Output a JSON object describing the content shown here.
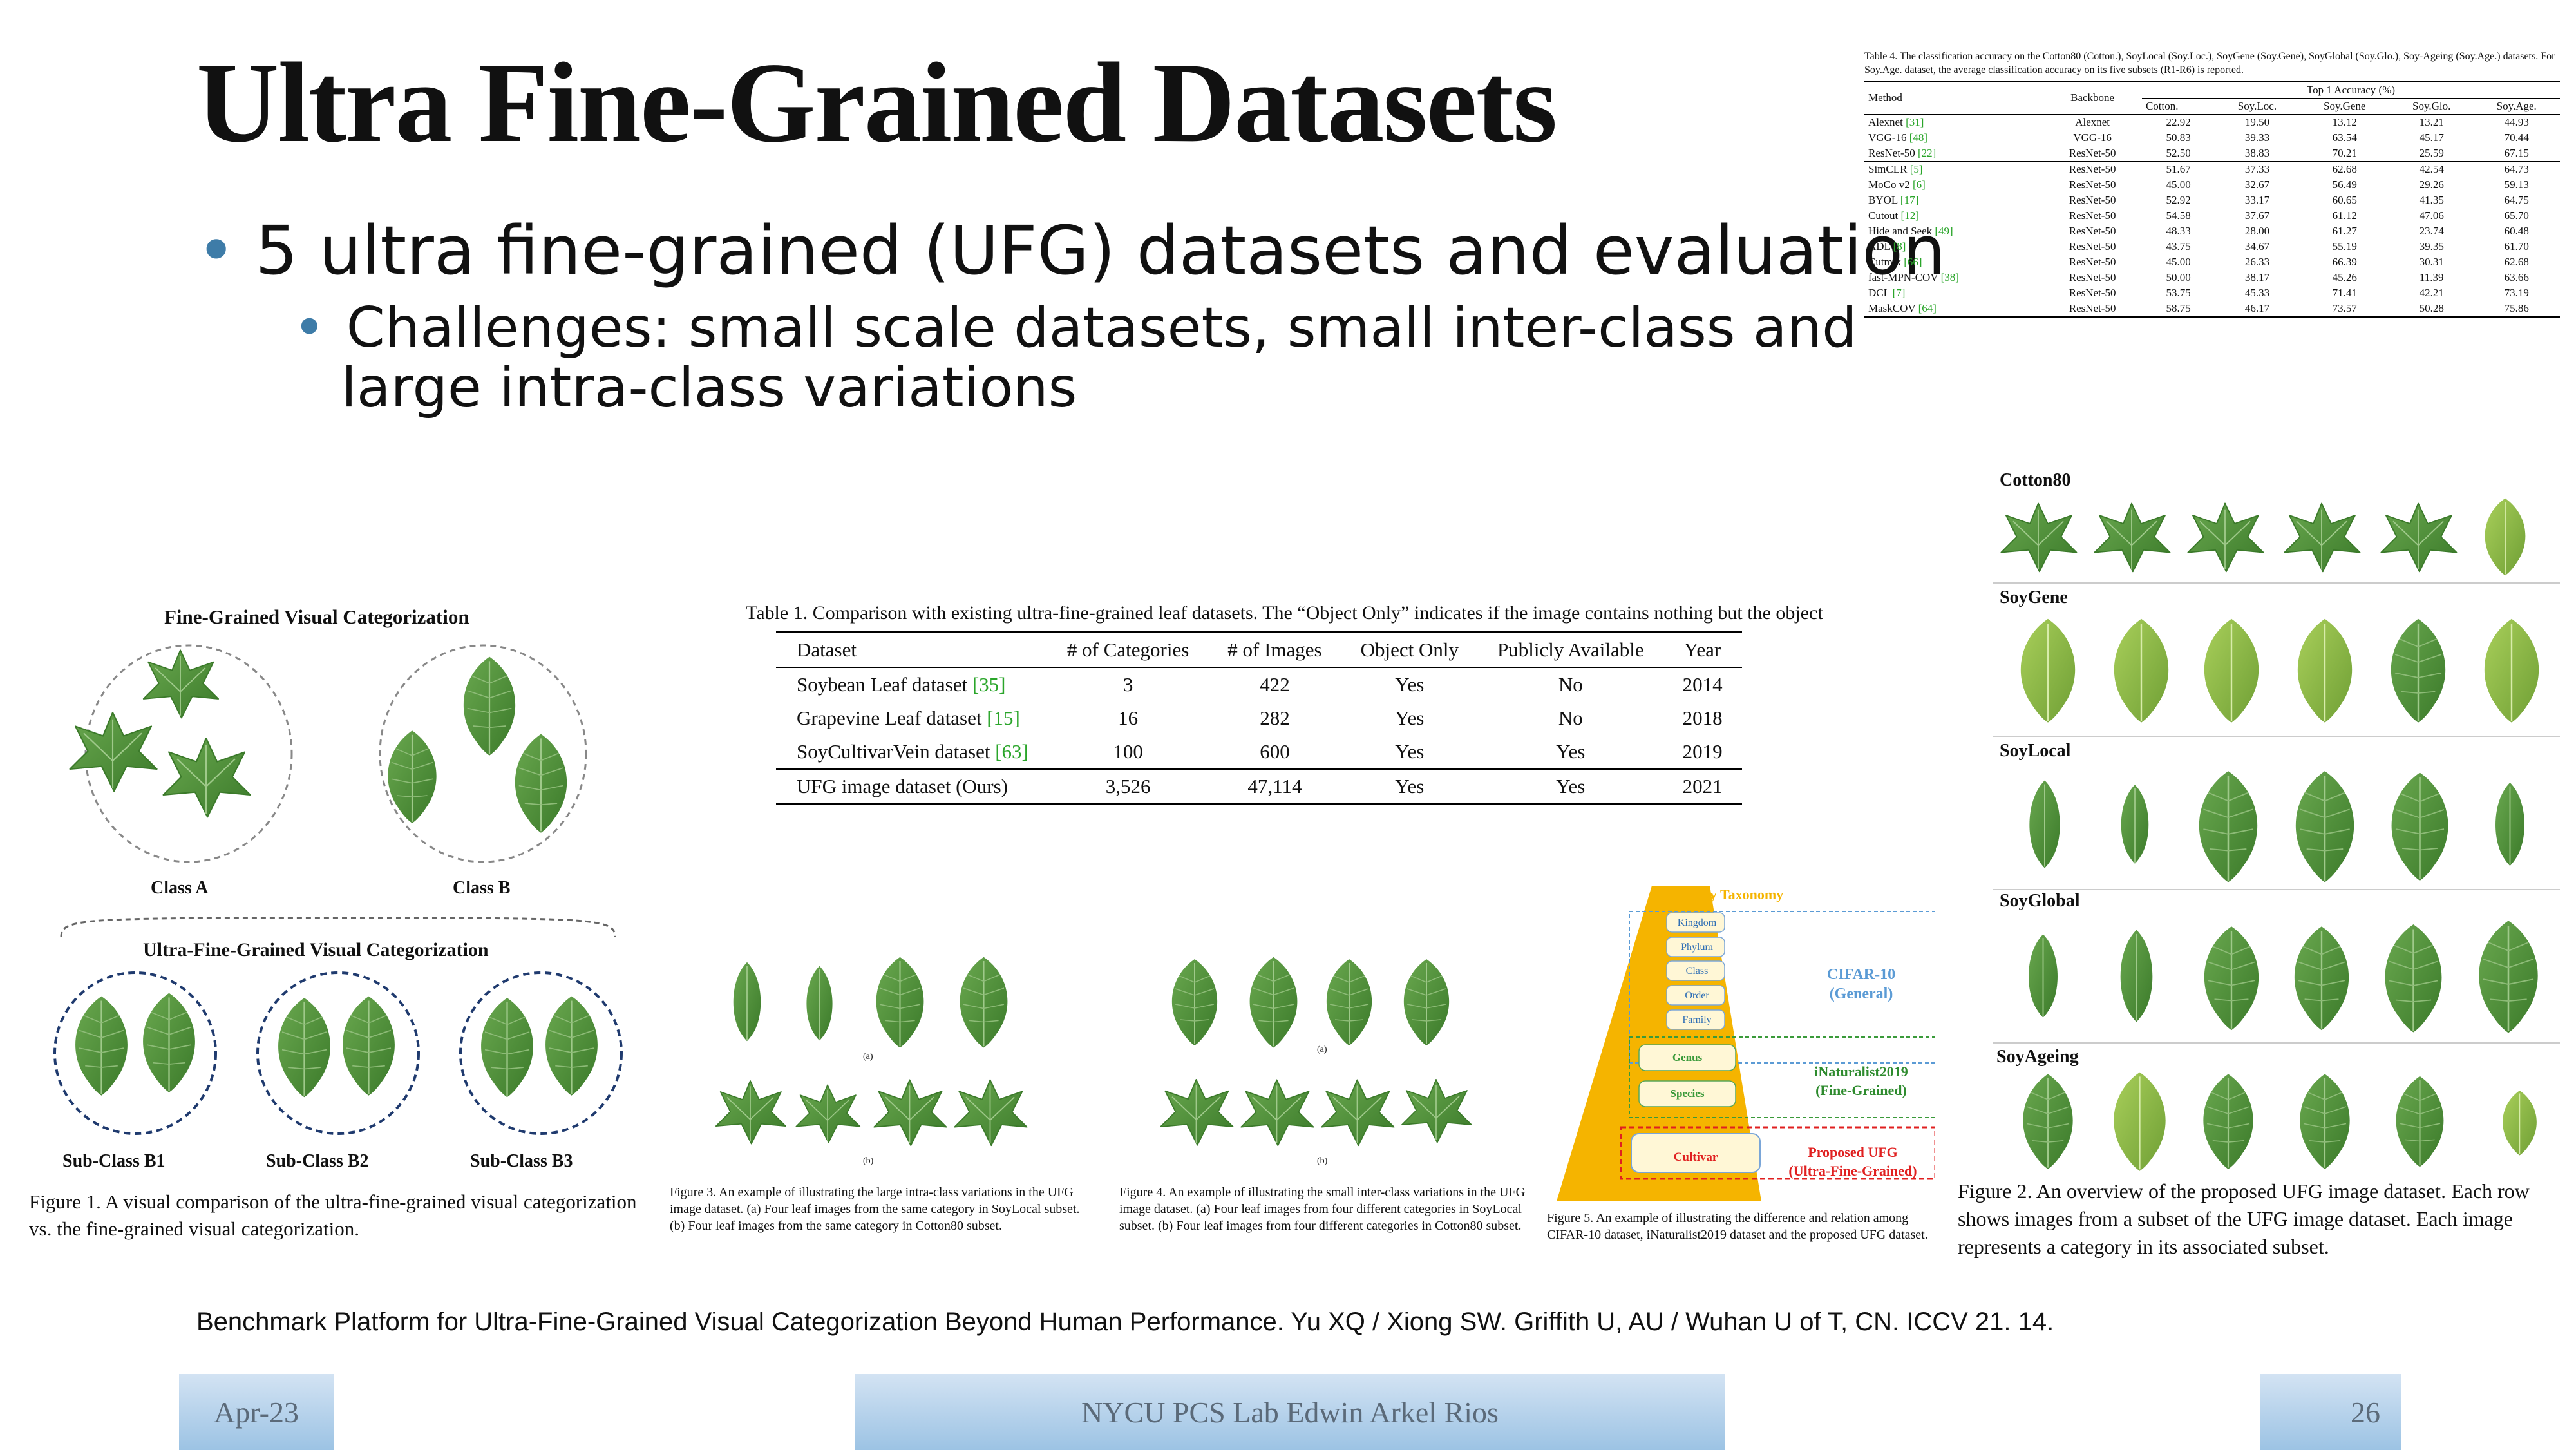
{
  "title": "Ultra Fine-Grained Datasets",
  "bullets": {
    "main": "5 ultra fine-grained (UFG) datasets and evaluation",
    "sub_line1": "Challenges: small scale datasets, small inter-class and",
    "sub_line2": "large intra-class variations"
  },
  "table4": {
    "caption": "Table 4. The classification accuracy on the Cotton80 (Cotton.), SoyLocal (Soy.Loc.), SoyGene (Soy.Gene), SoyGlobal (Soy.Glo.), Soy-Ageing (Soy.Age.) datasets. For Soy.Age. dataset, the average classification accuracy on its five subsets (R1-R6) is reported.",
    "col_method": "Method",
    "col_backbone": "Backbone",
    "col_group": "Top 1 Accuracy (%)",
    "cols": [
      "Cotton.",
      "Soy.Loc.",
      "Soy.Gene",
      "Soy.Glo.",
      "Soy.Age."
    ],
    "rows": [
      {
        "method": "Alexnet",
        "ref": "[31]",
        "backbone": "Alexnet",
        "vals": [
          "22.92",
          "19.50",
          "13.12",
          "13.21",
          "44.93"
        ]
      },
      {
        "method": "VGG-16",
        "ref": "[48]",
        "backbone": "VGG-16",
        "vals": [
          "50.83",
          "39.33",
          "63.54",
          "45.17",
          "70.44"
        ]
      },
      {
        "method": "ResNet-50",
        "ref": "[22]",
        "backbone": "ResNet-50",
        "vals": [
          "52.50",
          "38.83",
          "70.21",
          "25.59",
          "67.15"
        ]
      },
      {
        "method": "SimCLR",
        "ref": "[5]",
        "backbone": "ResNet-50",
        "vals": [
          "51.67",
          "37.33",
          "62.68",
          "42.54",
          "64.73"
        ]
      },
      {
        "method": "MoCo v2",
        "ref": "[6]",
        "backbone": "ResNet-50",
        "vals": [
          "45.00",
          "32.67",
          "56.49",
          "29.26",
          "59.13"
        ]
      },
      {
        "method": "BYOL",
        "ref": "[17]",
        "backbone": "ResNet-50",
        "vals": [
          "52.92",
          "33.17",
          "60.65",
          "41.35",
          "64.75"
        ]
      },
      {
        "method": "Cutout",
        "ref": "[12]",
        "backbone": "ResNet-50",
        "vals": [
          "54.58",
          "37.67",
          "61.12",
          "47.06",
          "65.70"
        ]
      },
      {
        "method": "Hide and Seek",
        "ref": "[49]",
        "backbone": "ResNet-50",
        "vals": [
          "48.33",
          "28.00",
          "61.27",
          "23.74",
          "60.48"
        ]
      },
      {
        "method": "ADL",
        "ref": "[8]",
        "backbone": "ResNet-50",
        "vals": [
          "43.75",
          "34.67",
          "55.19",
          "39.35",
          "61.70"
        ]
      },
      {
        "method": "Cutmix",
        "ref": "[66]",
        "backbone": "ResNet-50",
        "vals": [
          "45.00",
          "26.33",
          "66.39",
          "30.31",
          "62.68"
        ]
      },
      {
        "method": "fast-MPN-COV",
        "ref": "[38]",
        "backbone": "ResNet-50",
        "vals": [
          "50.00",
          "38.17",
          "45.26",
          "11.39",
          "63.66"
        ]
      },
      {
        "method": "DCL",
        "ref": "[7]",
        "backbone": "ResNet-50",
        "vals": [
          "53.75",
          "45.33",
          "71.41",
          "42.21",
          "73.19"
        ]
      },
      {
        "method": "MaskCOV",
        "ref": "[64]",
        "backbone": "ResNet-50",
        "vals": [
          "58.75",
          "46.17",
          "73.57",
          "50.28",
          "75.86"
        ]
      }
    ]
  },
  "table1": {
    "caption": "Table 1. Comparison with existing ultra-fine-grained leaf datasets. The “Object Only” indicates if the image contains nothing but the object",
    "headers": [
      "Dataset",
      "# of Categories",
      "# of Images",
      "Object Only",
      "Publicly Available",
      "Year"
    ],
    "rows": [
      {
        "name": "Soybean Leaf dataset",
        "ref": "[35]",
        "cats": "3",
        "imgs": "422",
        "obj": "Yes",
        "pub": "No",
        "year": "2014"
      },
      {
        "name": "Grapevine Leaf dataset",
        "ref": "[15]",
        "cats": "16",
        "imgs": "282",
        "obj": "Yes",
        "pub": "No",
        "year": "2018"
      },
      {
        "name": "SoyCultivarVein dataset",
        "ref": "[63]",
        "cats": "100",
        "imgs": "600",
        "obj": "Yes",
        "pub": "Yes",
        "year": "2019"
      }
    ],
    "last_row": {
      "name": "UFG image dataset (Ours)",
      "cats": "3,526",
      "imgs": "47,114",
      "obj": "Yes",
      "pub": "Yes",
      "year": "2021"
    }
  },
  "fig1": {
    "top_title": "Fine-Grained Visual Categorization",
    "class_a": "Class A",
    "class_b": "Class B",
    "mid_title": "Ultra-Fine-Grained Visual Categorization",
    "sub_b1": "Sub-Class B1",
    "sub_b2": "Sub-Class B2",
    "sub_b3": "Sub-Class B3",
    "caption": "Figure 1. A visual comparison of the ultra-fine-grained visual categorization vs. the fine-grained visual categorization."
  },
  "fig3": {
    "label_a": "(a)",
    "label_b": "(b)",
    "caption": "Figure 3. An example of illustrating the large intra-class variations in the UFG image dataset. (a) Four leaf images from the same category in SoyLocal subset. (b) Four leaf images from the same category in Cotton80 subset."
  },
  "fig4": {
    "label_a": "(a)",
    "label_b": "(b)",
    "caption": "Figure 4. An example of illustrating the small inter-class variations in the UFG image dataset. (a) Four leaf images from four different categories in SoyLocal subset. (b) Four leaf images from four different categories in Cotton80 subset."
  },
  "fig5": {
    "title": "Biology Taxonomy",
    "levels": [
      "Kingdom",
      "Phylum",
      "Class",
      "Order",
      "Family",
      "Genus",
      "Species",
      "Cultivar"
    ],
    "cifar": "CIFAR-10",
    "cifar_sub": "(General)",
    "inat": "iNaturalist2019",
    "inat_sub": "(Fine-Grained)",
    "ufg": "Proposed UFG",
    "ufg_sub": "(Ultra-Fine-Grained)",
    "caption": "Figure 5. An example of illustrating the difference and relation among CIFAR-10 dataset, iNaturalist2019 dataset and the proposed UFG dataset."
  },
  "fig2": {
    "rows": [
      "Cotton80",
      "SoyGene",
      "SoyLocal",
      "SoyGlobal",
      "SoyAgeing"
    ],
    "caption": "Figure 2. An overview of the proposed UFG image dataset. Each row shows images from a subset of the UFG image dataset. Each image represents a category in its associated subset."
  },
  "citation": "Benchmark Platform for Ultra-Fine-Grained Visual Categorization Beyond Human Performance. Yu XQ / Xiong SW. Griffith U, AU / Wuhan U of T, CN. ICCV 21. 14.",
  "footer": {
    "date": "Apr-23",
    "center": "NYCU PCS Lab Edwin Arkel Rios",
    "page": "26"
  },
  "colors": {
    "bullet": "#3E7CA8",
    "ref_green": "#2aa52a",
    "leaf_dark": "#3f7f2e",
    "taxonomy_orange": "#f5b400"
  }
}
